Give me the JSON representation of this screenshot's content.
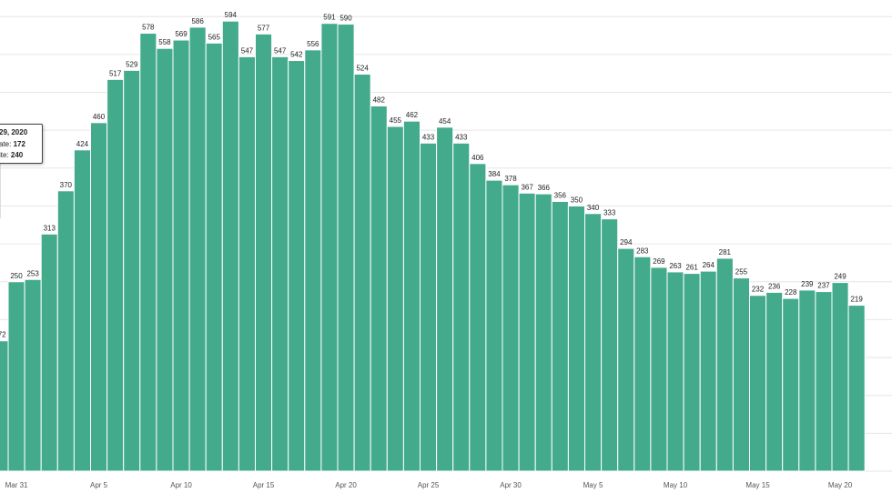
{
  "chart_data": {
    "type": "bar",
    "color": "#43ab8b",
    "ylim": [
      0,
      650
    ],
    "grid": true,
    "values": [
      172,
      250,
      253,
      313,
      370,
      424,
      460,
      517,
      529,
      578,
      558,
      569,
      586,
      565,
      594,
      547,
      577,
      547,
      542,
      556,
      591,
      590,
      524,
      482,
      455,
      462,
      433,
      454,
      433,
      406,
      384,
      378,
      367,
      366,
      356,
      350,
      340,
      333,
      294,
      283,
      269,
      263,
      261,
      264,
      281,
      255,
      232,
      236,
      228,
      239,
      237,
      249,
      219
    ],
    "x_ticks": [
      {
        "label": "Mar 31",
        "index": 1
      },
      {
        "label": "Apr 5",
        "index": 6
      },
      {
        "label": "Apr 10",
        "index": 11
      },
      {
        "label": "Apr 15",
        "index": 16
      },
      {
        "label": "Apr 20",
        "index": 21
      },
      {
        "label": "Apr 25",
        "index": 26
      },
      {
        "label": "Apr 30",
        "index": 31
      },
      {
        "label": "May 5",
        "index": 36
      },
      {
        "label": "May 10",
        "index": 41
      },
      {
        "label": "May 15",
        "index": 46
      },
      {
        "label": "May 20",
        "index": 51
      }
    ]
  },
  "tooltip": {
    "title": "29, 2020",
    "row1_label": "ate:",
    "row1_value": "172",
    "row2_label": "ite:",
    "row2_value": "240"
  }
}
